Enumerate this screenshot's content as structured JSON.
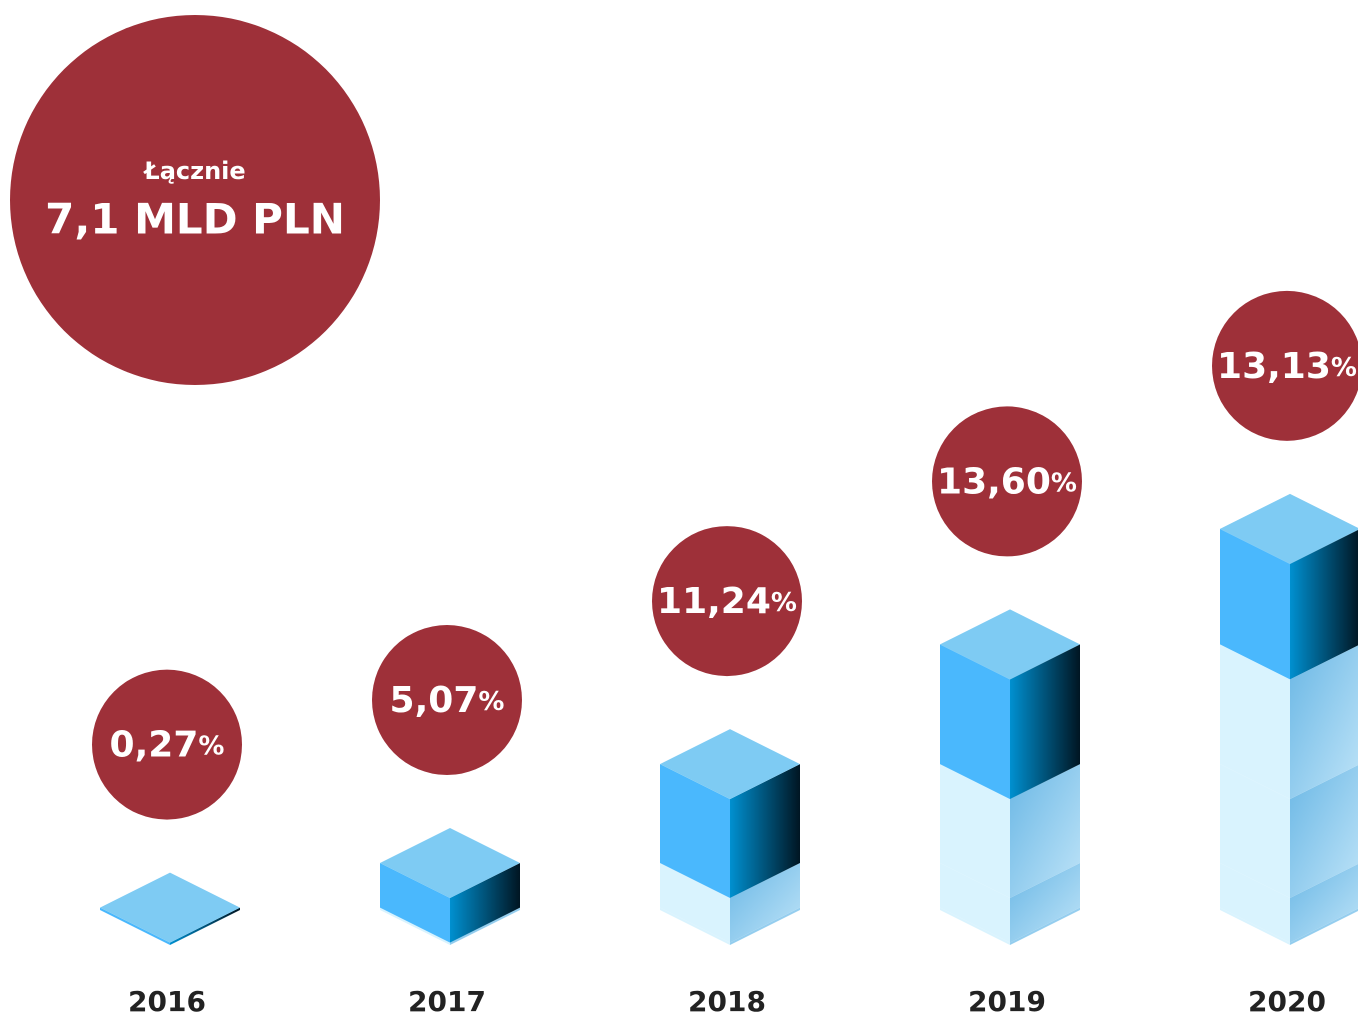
{
  "chart_data": {
    "type": "bar",
    "annotations": [
      "Łącznie",
      "7,1 MLD PLN"
    ],
    "categories": [
      "2016",
      "2017",
      "2018",
      "2019",
      "2020"
    ],
    "values": [
      0.27,
      5.07,
      11.24,
      13.6,
      13.13
    ],
    "value_labels": [
      "0,27%",
      "5,07%",
      "11,24%",
      "13,60%",
      "13,13%"
    ],
    "color": "#4ab8fd",
    "stacked_color": "#d9f3fe",
    "label_color": "#9e3039"
  }
}
